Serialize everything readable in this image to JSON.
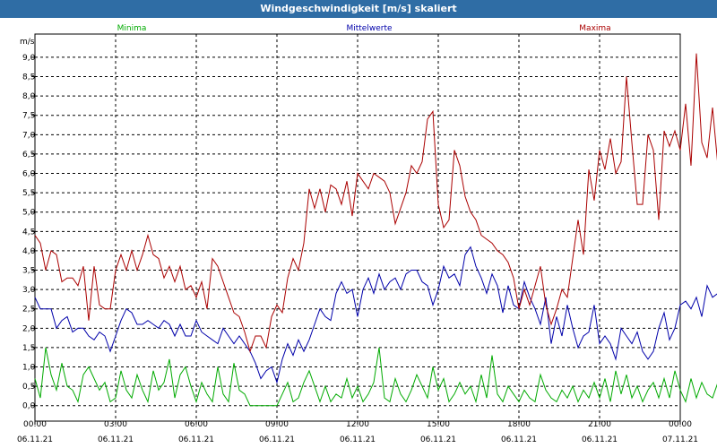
{
  "chart_data": {
    "type": "line",
    "title": "Windgeschwindigkeit [m/s] skaliert",
    "ylabel": "m/s",
    "ylim": [
      -0.4,
      9.6
    ],
    "xlim": [
      0,
      24
    ],
    "y_ticks": [
      "0,0",
      "0,5",
      "1,0",
      "1,5",
      "2,0",
      "2,5",
      "3,0",
      "3,5",
      "4,0",
      "4,5",
      "5,0",
      "5,5",
      "6,0",
      "6,5",
      "7,0",
      "7,5",
      "8,0",
      "8,5",
      "9,0"
    ],
    "x_ticks": [
      {
        "time": "00:00",
        "date": "06.11.21"
      },
      {
        "time": "03:00",
        "date": "06.11.21"
      },
      {
        "time": "06:00",
        "date": "06.11.21"
      },
      {
        "time": "09:00",
        "date": "06.11.21"
      },
      {
        "time": "12:00",
        "date": "06.11.21"
      },
      {
        "time": "15:00",
        "date": "06.11.21"
      },
      {
        "time": "18:00",
        "date": "06.11.21"
      },
      {
        "time": "21:00",
        "date": "06.11.21"
      },
      {
        "time": "00:00",
        "date": "07.11.21"
      }
    ],
    "grid": true,
    "legend_position": "top",
    "x_hours_step": 0.2,
    "series": [
      {
        "name": "Minima",
        "color": "#00aa00",
        "values": [
          0.7,
          0.2,
          1.5,
          0.8,
          0.4,
          1.1,
          0.5,
          0.4,
          0.1,
          0.8,
          1.0,
          0.7,
          0.4,
          0.6,
          0.1,
          0.2,
          0.9,
          0.4,
          0.2,
          0.8,
          0.4,
          0.1,
          0.9,
          0.4,
          0.6,
          1.2,
          0.2,
          0.8,
          1.0,
          0.5,
          0.1,
          0.6,
          0.3,
          0.1,
          1.0,
          0.3,
          0.1,
          1.1,
          0.4,
          0.3,
          0.0,
          0.0,
          0.0,
          0.0,
          0.0,
          0.0,
          0.3,
          0.6,
          0.1,
          0.2,
          0.6,
          0.9,
          0.5,
          0.1,
          0.5,
          0.1,
          0.3,
          0.2,
          0.7,
          0.2,
          0.5,
          0.1,
          0.3,
          0.6,
          1.5,
          0.2,
          0.1,
          0.7,
          0.3,
          0.1,
          0.4,
          0.8,
          0.5,
          0.2,
          1.0,
          0.4,
          0.7,
          0.1,
          0.3,
          0.6,
          0.3,
          0.5,
          0.1,
          0.8,
          0.2,
          1.3,
          0.3,
          0.1,
          0.5,
          0.3,
          0.1,
          0.4,
          0.2,
          0.1,
          0.8,
          0.4,
          0.2,
          0.1,
          0.4,
          0.2,
          0.5,
          0.1,
          0.4,
          0.2,
          0.6,
          0.2,
          0.7,
          0.1,
          0.9,
          0.3,
          0.8,
          0.2,
          0.5,
          0.1,
          0.4,
          0.6,
          0.2,
          0.7,
          0.2,
          0.9,
          0.4,
          0.1,
          0.7,
          0.2,
          0.6,
          0.3,
          0.2,
          0.6,
          0.8,
          0.1,
          1.2,
          0.4,
          0.1,
          1.5,
          0.6,
          0.2,
          0.7,
          0.3,
          0.5,
          0.2,
          0.8,
          0.3,
          0.6,
          0.5,
          0.3,
          0.4,
          0.5,
          0.3,
          0.6,
          0.3,
          0.5,
          0.5
        ]
      },
      {
        "name": "Mittelwerte",
        "color": "#0000aa",
        "values": [
          2.8,
          2.5,
          2.5,
          2.5,
          2.0,
          2.2,
          2.3,
          1.9,
          2.0,
          2.0,
          1.8,
          1.7,
          1.9,
          1.8,
          1.4,
          1.8,
          2.2,
          2.5,
          2.4,
          2.1,
          2.1,
          2.2,
          2.1,
          2.0,
          2.2,
          2.1,
          1.8,
          2.1,
          1.8,
          1.8,
          2.2,
          1.9,
          1.8,
          1.7,
          1.6,
          2.0,
          1.8,
          1.6,
          1.8,
          1.6,
          1.4,
          1.1,
          0.7,
          0.9,
          1.0,
          0.6,
          1.2,
          1.6,
          1.3,
          1.7,
          1.4,
          1.7,
          2.1,
          2.5,
          2.3,
          2.2,
          2.9,
          3.2,
          2.9,
          3.0,
          2.3,
          3.0,
          3.3,
          2.9,
          3.4,
          3.0,
          3.2,
          3.3,
          3.0,
          3.4,
          3.5,
          3.5,
          3.2,
          3.1,
          2.6,
          3.0,
          3.6,
          3.3,
          3.4,
          3.1,
          3.9,
          4.1,
          3.6,
          3.3,
          2.9,
          3.4,
          3.1,
          2.4,
          3.1,
          2.6,
          2.5,
          3.2,
          2.8,
          2.5,
          2.1,
          2.8,
          1.6,
          2.3,
          1.8,
          2.6,
          2.0,
          1.5,
          1.8,
          1.9,
          2.6,
          1.6,
          1.8,
          1.6,
          1.2,
          2.0,
          1.8,
          1.6,
          1.9,
          1.4,
          1.2,
          1.4,
          2.0,
          2.4,
          1.7,
          2.0,
          2.6,
          2.7,
          2.5,
          2.8,
          2.3,
          3.1,
          2.8,
          2.9,
          3.0,
          2.5,
          2.9,
          3.2,
          2.9,
          3.3,
          3.0,
          3.6,
          3.1,
          2.8,
          3.4,
          3.6,
          3.1,
          3.5,
          3.0,
          3.6,
          3.3,
          3.6,
          3.8,
          3.1,
          3.2,
          3.8,
          3.9,
          3.7
        ]
      },
      {
        "name": "Maxima",
        "color": "#aa0000",
        "values": [
          4.4,
          4.2,
          3.5,
          4.0,
          3.9,
          3.2,
          3.3,
          3.3,
          3.1,
          3.6,
          2.2,
          3.6,
          2.6,
          2.5,
          2.5,
          3.5,
          3.9,
          3.5,
          4.0,
          3.5,
          3.9,
          4.4,
          3.9,
          3.8,
          3.3,
          3.6,
          3.2,
          3.6,
          3.0,
          3.1,
          2.8,
          3.2,
          2.5,
          3.8,
          3.6,
          3.2,
          2.8,
          2.4,
          2.3,
          1.9,
          1.4,
          1.8,
          1.8,
          1.5,
          2.3,
          2.6,
          2.4,
          3.3,
          3.8,
          3.5,
          4.2,
          5.6,
          5.1,
          5.6,
          5.0,
          5.7,
          5.6,
          5.2,
          5.8,
          4.9,
          6.0,
          5.8,
          5.6,
          6.0,
          5.9,
          5.8,
          5.5,
          4.7,
          5.1,
          5.5,
          6.2,
          6.0,
          6.3,
          7.4,
          7.6,
          5.2,
          4.6,
          4.8,
          6.6,
          6.2,
          5.4,
          5.0,
          4.8,
          4.4,
          4.3,
          4.2,
          4.0,
          3.9,
          3.7,
          3.3,
          2.5,
          3.0,
          2.6,
          3.1,
          3.6,
          2.6,
          2.1,
          2.5,
          3.0,
          2.8,
          3.8,
          4.8,
          3.9,
          6.1,
          5.3,
          6.6,
          6.1,
          6.9,
          6.0,
          6.3,
          8.5,
          6.8,
          5.2,
          5.2,
          7.0,
          6.6,
          4.8,
          7.1,
          6.7,
          7.1,
          6.6,
          7.8,
          6.2,
          9.1,
          6.8,
          6.4,
          7.7,
          6.2,
          6.0,
          7.0,
          6.9,
          6.1,
          5.5,
          5.2,
          4.8,
          7.1,
          6.6,
          7.3,
          7.5,
          7.4,
          6.7,
          7.0,
          6.5,
          7.0,
          6.1,
          7.8,
          6.7,
          7.2,
          6.6,
          7.5
        ]
      }
    ]
  }
}
